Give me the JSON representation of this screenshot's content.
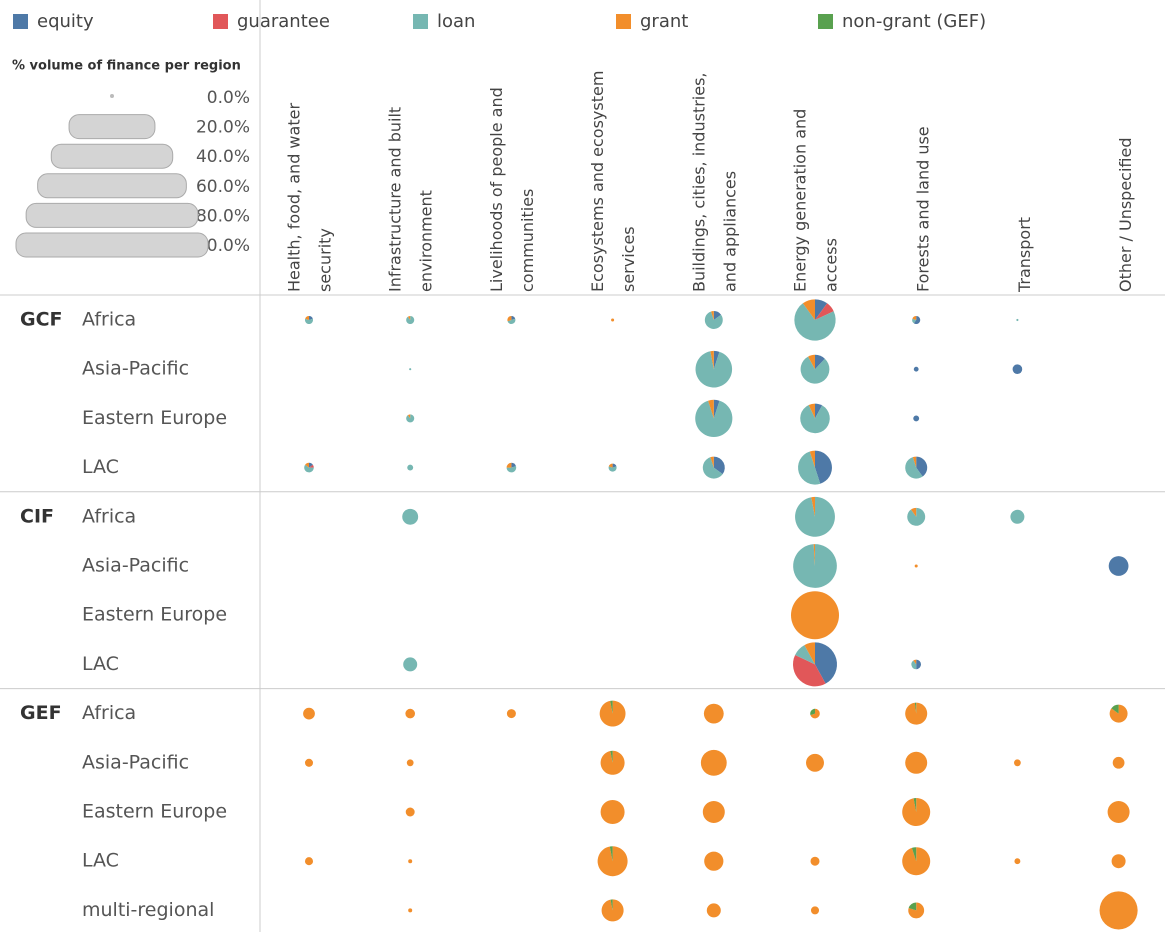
{
  "chart_data": {
    "type": "pie-matrix",
    "series": [
      {
        "name": "equity",
        "color": "#4e79a7"
      },
      {
        "name": "guarantee",
        "color": "#e15759"
      },
      {
        "name": "loan",
        "color": "#76b7b2"
      },
      {
        "name": "grant",
        "color": "#f28e2b"
      },
      {
        "name": "non-grant (GEF)",
        "color": "#59a14f"
      }
    ],
    "size_legend": {
      "title": "% volume of finance per region",
      "ticks": [
        {
          "value": 0,
          "label": "0.0%"
        },
        {
          "value": 20,
          "label": "20.0%"
        },
        {
          "value": 40,
          "label": "40.0%"
        },
        {
          "value": 60,
          "label": "60.0%"
        },
        {
          "value": 80,
          "label": "80.0%"
        },
        {
          "value": 100,
          "label": "100.0%"
        }
      ]
    },
    "columns": [
      [
        "Health, food, and water",
        "security"
      ],
      [
        "Infrastructure and built",
        "environment"
      ],
      [
        "Livelihoods of people and",
        "communities"
      ],
      [
        "Ecosystems and ecosystem",
        "services"
      ],
      [
        "Buildings, cities, industries,",
        "and appliances"
      ],
      [
        "Energy generation and",
        "access"
      ],
      [
        "Forests and land use"
      ],
      [
        "Transport"
      ],
      [
        "Other / Unspecified"
      ]
    ],
    "funds": [
      {
        "name": "GCF",
        "regions": [
          {
            "name": "Africa",
            "cells": [
              {
                "size": 2.8,
                "shares": [
                  20,
                  0,
                  60,
                  20,
                  0
                ]
              },
              {
                "size": 2.8,
                "shares": [
                  0,
                  0,
                  90,
                  10,
                  0
                ]
              },
              {
                "size": 2.8,
                "shares": [
                  20,
                  0,
                  50,
                  30,
                  0
                ]
              },
              {
                "size": 0.4,
                "shares": [
                  0,
                  0,
                  0,
                  100,
                  0
                ]
              },
              {
                "size": 14,
                "shares": [
                  15,
                  0,
                  80,
                  5,
                  0
                ]
              },
              {
                "size": 74,
                "shares": [
                  10,
                  8,
                  72,
                  10,
                  0
                ]
              },
              {
                "size": 2.8,
                "shares": [
                  60,
                  0,
                  20,
                  20,
                  0
                ]
              },
              {
                "size": 0.2,
                "shares": [
                  0,
                  0,
                  100,
                  0,
                  0
                ]
              },
              null
            ]
          },
          {
            "name": "Asia-Pacific",
            "cells": [
              null,
              {
                "size": 0.2,
                "shares": [
                  0,
                  0,
                  100,
                  0,
                  0
                ]
              },
              null,
              null,
              {
                "size": 58,
                "shares": [
                  5,
                  0,
                  92,
                  3,
                  0
                ]
              },
              {
                "size": 36,
                "shares": [
                  12,
                  0,
                  80,
                  8,
                  0
                ]
              },
              {
                "size": 1,
                "shares": [
                  100,
                  0,
                  0,
                  0,
                  0
                ]
              },
              {
                "size": 4,
                "shares": [
                  100,
                  0,
                  0,
                  0,
                  0
                ]
              },
              null
            ]
          },
          {
            "name": "Eastern Europe",
            "cells": [
              null,
              {
                "size": 2.8,
                "shares": [
                  0,
                  0,
                  90,
                  10,
                  0
                ]
              },
              null,
              null,
              {
                "size": 60,
                "shares": [
                  5,
                  0,
                  90,
                  5,
                  0
                ]
              },
              {
                "size": 38,
                "shares": [
                  8,
                  0,
                  85,
                  7,
                  0
                ]
              },
              {
                "size": 1.5,
                "shares": [
                  100,
                  0,
                  0,
                  0,
                  0
                ]
              },
              null,
              null
            ]
          },
          {
            "name": "LAC",
            "cells": [
              {
                "size": 4,
                "shares": [
                  15,
                  10,
                  60,
                  15,
                  0
                ]
              },
              {
                "size": 1.5,
                "shares": [
                  0,
                  0,
                  100,
                  0,
                  0
                ]
              },
              {
                "size": 4,
                "shares": [
                  20,
                  0,
                  55,
                  25,
                  0
                ]
              },
              {
                "size": 2.8,
                "shares": [
                  20,
                  0,
                  60,
                  20,
                  0
                ]
              },
              {
                "size": 21,
                "shares": [
                  35,
                  0,
                  60,
                  5,
                  0
                ]
              },
              {
                "size": 50,
                "shares": [
                  45,
                  0,
                  50,
                  5,
                  0
                ]
              },
              {
                "size": 21,
                "shares": [
                  40,
                  0,
                  55,
                  5,
                  0
                ]
              },
              null,
              null
            ]
          }
        ]
      },
      {
        "name": "CIF",
        "regions": [
          {
            "name": "Africa",
            "cells": [
              null,
              {
                "size": 11,
                "shares": [
                  0,
                  0,
                  100,
                  0,
                  0
                ]
              },
              null,
              null,
              null,
              {
                "size": 69,
                "shares": [
                  0,
                  0,
                  97,
                  3,
                  0
                ]
              },
              {
                "size": 14,
                "shares": [
                  0,
                  0,
                  90,
                  10,
                  0
                ]
              },
              {
                "size": 8.5,
                "shares": [
                  0,
                  0,
                  100,
                  0,
                  0
                ]
              },
              null
            ]
          },
          {
            "name": "Asia-Pacific",
            "cells": [
              null,
              null,
              null,
              null,
              null,
              {
                "size": 83,
                "shares": [
                  0,
                  0,
                  99,
                  1,
                  0
                ]
              },
              {
                "size": 0.4,
                "shares": [
                  0,
                  0,
                  0,
                  100,
                  0
                ]
              },
              null,
              {
                "size": 17,
                "shares": [
                  100,
                  0,
                  0,
                  0,
                  0
                ]
              }
            ]
          },
          {
            "name": "Eastern Europe",
            "cells": [
              null,
              null,
              null,
              null,
              null,
              {
                "size": 100,
                "shares": [
                  0,
                  0,
                  0,
                  100,
                  0
                ]
              },
              null,
              null,
              null
            ]
          },
          {
            "name": "LAC",
            "cells": [
              null,
              {
                "size": 8.5,
                "shares": [
                  0,
                  0,
                  100,
                  0,
                  0
                ]
              },
              null,
              null,
              null,
              {
                "size": 84,
                "shares": [
                  42,
                  40,
                  10,
                  8,
                  0
                ]
              },
              {
                "size": 4,
                "shares": [
                  50,
                  0,
                  40,
                  10,
                  0
                ]
              },
              null,
              null
            ]
          }
        ]
      },
      {
        "name": "GEF",
        "regions": [
          {
            "name": "Africa",
            "cells": [
              {
                "size": 6,
                "shares": [
                  0,
                  0,
                  0,
                  100,
                  0
                ]
              },
              {
                "size": 4,
                "shares": [
                  0,
                  0,
                  0,
                  100,
                  0
                ]
              },
              {
                "size": 3.5,
                "shares": [
                  0,
                  0,
                  0,
                  100,
                  0
                ]
              },
              {
                "size": 29,
                "shares": [
                  0,
                  0,
                  0,
                  97,
                  3
                ]
              },
              {
                "size": 17,
                "shares": [
                  0,
                  0,
                  0,
                  100,
                  0
                ]
              },
              {
                "size": 4,
                "shares": [
                  0,
                  0,
                  0,
                  70,
                  30
                ]
              },
              {
                "size": 21,
                "shares": [
                  0,
                  0,
                  0,
                  98,
                  2
                ]
              },
              null,
              {
                "size": 14,
                "shares": [
                  0,
                  0,
                  0,
                  85,
                  15
                ]
              }
            ]
          },
          {
            "name": "Asia-Pacific",
            "cells": [
              {
                "size": 2.8,
                "shares": [
                  0,
                  0,
                  0,
                  100,
                  0
                ]
              },
              {
                "size": 2,
                "shares": [
                  0,
                  0,
                  0,
                  100,
                  0
                ]
              },
              null,
              {
                "size": 25,
                "shares": [
                  0,
                  0,
                  0,
                  97,
                  3
                ]
              },
              {
                "size": 29,
                "shares": [
                  0,
                  0,
                  0,
                  100,
                  0
                ]
              },
              {
                "size": 14,
                "shares": [
                  0,
                  0,
                  0,
                  100,
                  0
                ]
              },
              {
                "size": 21,
                "shares": [
                  0,
                  0,
                  0,
                  100,
                  0
                ]
              },
              {
                "size": 2,
                "shares": [
                  0,
                  0,
                  0,
                  100,
                  0
                ]
              },
              {
                "size": 6,
                "shares": [
                  0,
                  0,
                  0,
                  100,
                  0
                ]
              }
            ]
          },
          {
            "name": "Eastern Europe",
            "cells": [
              null,
              {
                "size": 3.5,
                "shares": [
                  0,
                  0,
                  0,
                  100,
                  0
                ]
              },
              null,
              {
                "size": 25,
                "shares": [
                  0,
                  0,
                  0,
                  100,
                  0
                ]
              },
              {
                "size": 21,
                "shares": [
                  0,
                  0,
                  0,
                  100,
                  0
                ]
              },
              null,
              {
                "size": 34,
                "shares": [
                  0,
                  0,
                  0,
                  97,
                  3
                ]
              },
              null,
              {
                "size": 21,
                "shares": [
                  0,
                  0,
                  0,
                  100,
                  0
                ]
              }
            ]
          },
          {
            "name": "LAC",
            "cells": [
              {
                "size": 2.8,
                "shares": [
                  0,
                  0,
                  0,
                  100,
                  0
                ]
              },
              {
                "size": 0.7,
                "shares": [
                  0,
                  0,
                  0,
                  100,
                  0
                ]
              },
              null,
              {
                "size": 39,
                "shares": [
                  0,
                  0,
                  0,
                  97,
                  3
                ]
              },
              {
                "size": 16,
                "shares": [
                  0,
                  0,
                  0,
                  100,
                  0
                ]
              },
              {
                "size": 3.5,
                "shares": [
                  0,
                  0,
                  0,
                  100,
                  0
                ]
              },
              {
                "size": 34,
                "shares": [
                  0,
                  0,
                  0,
                  95,
                  5
                ]
              },
              {
                "size": 1.5,
                "shares": [
                  0,
                  0,
                  0,
                  100,
                  0
                ]
              },
              {
                "size": 8.5,
                "shares": [
                  0,
                  0,
                  0,
                  100,
                  0
                ]
              }
            ]
          },
          {
            "name": "multi-regional",
            "cells": [
              null,
              {
                "size": 0.7,
                "shares": [
                  0,
                  0,
                  0,
                  100,
                  0
                ]
              },
              null,
              {
                "size": 21,
                "shares": [
                  0,
                  0,
                  0,
                  97,
                  3
                ]
              },
              {
                "size": 8.5,
                "shares": [
                  0,
                  0,
                  0,
                  100,
                  0
                ]
              },
              {
                "size": 2.8,
                "shares": [
                  0,
                  0,
                  0,
                  100,
                  0
                ]
              },
              {
                "size": 11,
                "shares": [
                  0,
                  0,
                  0,
                  80,
                  20
                ]
              },
              null,
              {
                "size": 63,
                "shares": [
                  0,
                  0,
                  0,
                  100,
                  0
                ]
              }
            ]
          }
        ]
      }
    ]
  }
}
